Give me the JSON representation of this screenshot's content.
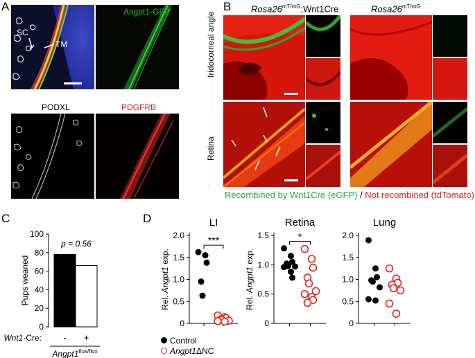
{
  "panel_letters": {
    "a": "A",
    "b": "B",
    "c": "C",
    "d": "D"
  },
  "panel_a": {
    "label_sc": "SC",
    "label_tm": "TM",
    "titles": [
      {
        "text": "Angpt1-GFP",
        "color": "#22bb22"
      },
      {
        "text": "PODXL",
        "color": "#000000"
      },
      {
        "text": "PDGFRB",
        "color": "#e2231a"
      }
    ]
  },
  "panel_b": {
    "col1_gene": "Rosa26",
    "col1_sup": "mT/mG",
    "col1_suffix": ";Wnt1Cre",
    "col2_gene": "Rosa26",
    "col2_sup": "mT/mG",
    "row1": "Iridocorneal angle",
    "row2": "Retina",
    "legend_green": "Recombined by Wnt1Cre (eGFP)",
    "legend_sep": " / ",
    "legend_red": "Not recombined (tdTomato)"
  },
  "chart_data": [
    {
      "type": "bar",
      "categories": [
        "-",
        "+"
      ],
      "values": [
        78,
        66
      ],
      "ylabel": "Pups weaned",
      "ylim": [
        0,
        100
      ],
      "yticks": [
        "0",
        "20",
        "40",
        "60",
        "80",
        "100"
      ],
      "annotation": "p = 0.56",
      "row_label": "Wnt1",
      "row_label_suffix": "-Cre:",
      "genotype": "Angpt1",
      "genotype_sup": "flox/flox",
      "colors": [
        "#000000",
        "#ffffff"
      ]
    },
    {
      "type": "scatter",
      "title": "LI",
      "ylabel_prefix": "Rel. ",
      "ylabel_gene": "Angpt1",
      "ylabel_suffix": " exp.",
      "ylim": [
        0,
        2.0
      ],
      "yticks": [
        "0",
        "0.5",
        "1.0",
        "1.5",
        "2.0"
      ],
      "significance": "***",
      "series": [
        {
          "name": "Control",
          "values": [
            1.62,
            1.55,
            1.38,
            0.95,
            0.63
          ]
        },
        {
          "name": "Angpt1ΔNC",
          "values": [
            0.18,
            0.14,
            0.12,
            0.09,
            0.08,
            0.06,
            0.05,
            0.04
          ]
        }
      ]
    },
    {
      "type": "scatter",
      "title": "Retina",
      "ylabel_prefix": "Rel. ",
      "ylabel_gene": "Angpt1",
      "ylabel_suffix": " exp.",
      "ylim": [
        0,
        1.5
      ],
      "yticks": [
        "0",
        "0.5",
        "1.0",
        "1.5"
      ],
      "significance": "*",
      "series": [
        {
          "name": "Control",
          "values": [
            1.28,
            1.15,
            1.05,
            1.02,
            0.98,
            0.97,
            0.96,
            0.88,
            0.78
          ]
        },
        {
          "name": "Angpt1ΔNC",
          "values": [
            1.27,
            1.1,
            0.95,
            0.78,
            0.68,
            0.55,
            0.5,
            0.45,
            0.4,
            0.35
          ]
        }
      ]
    },
    {
      "type": "scatter",
      "title": "Lung",
      "ylim": [
        0,
        2.0
      ],
      "yticks": [
        "0",
        "0.5",
        "1.0",
        "1.5",
        "2.0"
      ],
      "series": [
        {
          "name": "Control",
          "values": [
            1.89,
            1.25,
            1.05,
            0.98,
            0.95,
            0.82,
            0.55,
            0.52
          ]
        },
        {
          "name": "Angpt1ΔNC",
          "values": [
            1.25,
            1.02,
            0.92,
            0.88,
            0.8,
            0.75,
            0.45,
            0.22
          ]
        }
      ]
    }
  ],
  "legend_d": {
    "control": "Control",
    "mutant_gene": "Angpt1",
    "mutant_suffix": "ΔNC",
    "colors": {
      "control": "#000000",
      "mutant": "#e2231a"
    }
  }
}
